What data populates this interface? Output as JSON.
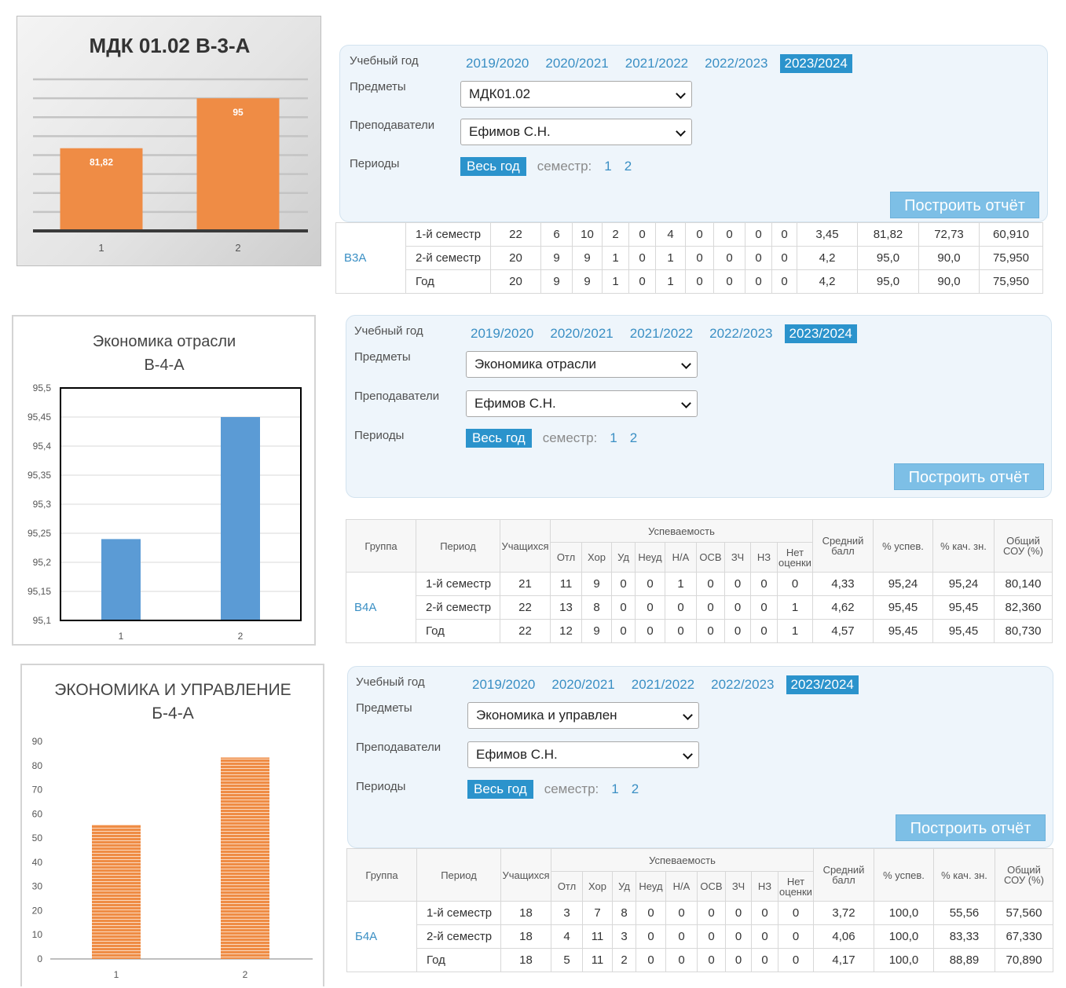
{
  "chart1": {
    "title": "МДК 01.02 В-3-А",
    "chart_data": {
      "type": "bar",
      "title": "МДК 01.02 В-3-А",
      "categories": [
        "1",
        "2"
      ],
      "values": [
        81.82,
        95
      ],
      "data_labels": [
        "81,82",
        "95"
      ],
      "ylim": [
        60,
        100
      ],
      "grid": true,
      "bar_color": "#ef8c45"
    }
  },
  "chart2": {
    "title_line1": "Экономика отрасли",
    "title_line2": "В-4-А",
    "chart_data": {
      "type": "bar",
      "title": "Экономика отрасли В-4-А",
      "categories": [
        "1",
        "2"
      ],
      "values": [
        95.24,
        95.45
      ],
      "ylim": [
        95.1,
        95.5
      ],
      "y_ticks": [
        "95,5",
        "95,45",
        "95,4",
        "95,35",
        "95,3",
        "95,25",
        "95,2",
        "95,15",
        "95,1"
      ],
      "grid": true,
      "bar_color": "#5b9bd5"
    }
  },
  "chart3": {
    "title_line1": "ЭКОНОМИКА И УПРАВЛЕНИЕ",
    "title_line2": "Б-4-А",
    "chart_data": {
      "type": "bar",
      "title": "ЭКОНОМИКА И УПРАВЛЕНИЕ Б-4-А",
      "categories": [
        "1",
        "2"
      ],
      "values": [
        55.56,
        83.33
      ],
      "ylim": [
        0,
        90
      ],
      "y_ticks": [
        "90",
        "80",
        "70",
        "60",
        "50",
        "40",
        "30",
        "20",
        "10",
        "0"
      ],
      "grid": false,
      "bar_color": "#ef8c45"
    }
  },
  "panels": [
    {
      "year_label": "Учебный год",
      "years": [
        "2019/2020",
        "2020/2021",
        "2021/2022",
        "2022/2023",
        "2023/2024"
      ],
      "active_year": "2023/2024",
      "subjects_label": "Предметы",
      "subject": "МДК01.02",
      "teachers_label": "Преподаватели",
      "teacher": "Ефимов С.Н.",
      "periods_label": "Периоды",
      "whole_year": "Весь год",
      "semester_label": "семестр:",
      "sem1": "1",
      "sem2": "2",
      "build": "Построить отчёт"
    },
    {
      "year_label": "Учебный год",
      "years": [
        "2019/2020",
        "2020/2021",
        "2021/2022",
        "2022/2023",
        "2023/2024"
      ],
      "active_year": "2023/2024",
      "subjects_label": "Предметы",
      "subject": "Экономика отрасли",
      "teachers_label": "Преподаватели",
      "teacher": "Ефимов С.Н.",
      "periods_label": "Периоды",
      "whole_year": "Весь год",
      "semester_label": "семестр:",
      "sem1": "1",
      "sem2": "2",
      "build": "Построить отчёт"
    },
    {
      "year_label": "Учебный год",
      "years": [
        "2019/2020",
        "2020/2021",
        "2021/2022",
        "2022/2023",
        "2023/2024"
      ],
      "active_year": "2023/2024",
      "subjects_label": "Предметы",
      "subject": "Экономика и управлен",
      "teachers_label": "Преподаватели",
      "teacher": "Ефимов С.Н.",
      "periods_label": "Периоды",
      "whole_year": "Весь год",
      "semester_label": "семестр:",
      "sem1": "1",
      "sem2": "2",
      "build": "Построить отчёт"
    }
  ],
  "table_headers": {
    "group": "Группа",
    "period": "Период",
    "students": "Учащихся",
    "progress": "Успеваемость",
    "otl": "Отл",
    "hor": "Хор",
    "ud": "Уд",
    "neud": "Неуд",
    "na": "Н/А",
    "osv": "ОСВ",
    "zch": "ЗЧ",
    "nz": "НЗ",
    "net_line1": "Нет",
    "net_line2": "оценки",
    "avg_line1": "Средний",
    "avg_line2": "балл",
    "pct_success": "% успев.",
    "pct_quality": "% кач. зн.",
    "sou_line1": "Общий",
    "sou_line2": "СОУ (%)"
  },
  "tables": [
    {
      "group": "В3А",
      "rows": [
        [
          "1-й семестр",
          "22",
          "6",
          "10",
          "2",
          "0",
          "4",
          "0",
          "0",
          "0",
          "0",
          "3,45",
          "81,82",
          "72,73",
          "60,910"
        ],
        [
          "2-й семестр",
          "20",
          "9",
          "9",
          "1",
          "0",
          "1",
          "0",
          "0",
          "0",
          "0",
          "4,2",
          "95,0",
          "90,0",
          "75,950"
        ],
        [
          "Год",
          "20",
          "9",
          "9",
          "1",
          "0",
          "1",
          "0",
          "0",
          "0",
          "0",
          "4,2",
          "95,0",
          "90,0",
          "75,950"
        ]
      ]
    },
    {
      "group": "В4А",
      "rows": [
        [
          "1-й семестр",
          "21",
          "11",
          "9",
          "0",
          "0",
          "1",
          "0",
          "0",
          "0",
          "0",
          "4,33",
          "95,24",
          "95,24",
          "80,140"
        ],
        [
          "2-й семестр",
          "22",
          "13",
          "8",
          "0",
          "0",
          "0",
          "0",
          "0",
          "0",
          "1",
          "4,62",
          "95,45",
          "95,45",
          "82,360"
        ],
        [
          "Год",
          "22",
          "12",
          "9",
          "0",
          "0",
          "0",
          "0",
          "0",
          "0",
          "1",
          "4,57",
          "95,45",
          "95,45",
          "80,730"
        ]
      ]
    },
    {
      "group": "Б4А",
      "rows": [
        [
          "1-й семестр",
          "18",
          "3",
          "7",
          "8",
          "0",
          "0",
          "0",
          "0",
          "0",
          "0",
          "3,72",
          "100,0",
          "55,56",
          "57,560"
        ],
        [
          "2-й семестр",
          "18",
          "4",
          "11",
          "3",
          "0",
          "0",
          "0",
          "0",
          "0",
          "0",
          "4,06",
          "100,0",
          "83,33",
          "67,330"
        ],
        [
          "Год",
          "18",
          "5",
          "11",
          "2",
          "0",
          "0",
          "0",
          "0",
          "0",
          "0",
          "4,17",
          "100,0",
          "88,89",
          "70,890"
        ]
      ]
    }
  ]
}
